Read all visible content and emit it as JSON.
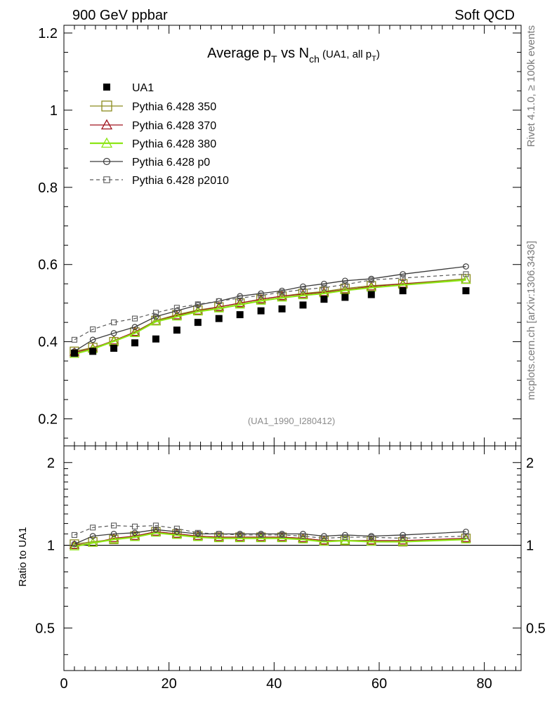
{
  "header": {
    "left": "900 GeV ppbar",
    "right": "Soft QCD"
  },
  "title": {
    "main": "Average p",
    "sub1": "T",
    "mid": " vs N",
    "sub2": "ch",
    "paren": " (UA1, all p",
    "sub3": "T",
    "close": ")"
  },
  "side_labels": {
    "rivet": "Rivet 4.1.0, ≥ 100k events",
    "mcplots": "mcplots.cern.ch [arXiv:1306.3436]"
  },
  "analysis_id": "(UA1_1990_I280412)",
  "ratio_ylabel": "Ratio to UA1",
  "colors": {
    "data": "#000000",
    "p350": "#8c8c1e",
    "p370": "#a0141e",
    "p380": "#8ce614",
    "p0": "#3c3c3c",
    "p2010": "#5a5a5a"
  },
  "chart_data": {
    "type": "line",
    "xlim": [
      0,
      87
    ],
    "ylim_main": [
      0.13,
      1.22
    ],
    "ylim_ratio": [
      0.35,
      2.3
    ],
    "x_ticks": [
      "0",
      "20",
      "40",
      "60",
      "80"
    ],
    "y_ticks_main": [
      "0.2",
      "0.4",
      "0.6",
      "0.8",
      "1",
      "1.2"
    ],
    "y_ticks_ratio": [
      "0.5",
      "1",
      "2"
    ],
    "x": [
      2,
      5.5,
      9.5,
      13.5,
      17.5,
      21.5,
      25.5,
      29.5,
      33.5,
      37.5,
      41.5,
      45.5,
      49.5,
      53.5,
      58.5,
      64.5,
      76.5
    ],
    "series": [
      {
        "name": "UA1",
        "style": "data",
        "values": [
          0.37,
          0.375,
          0.383,
          0.397,
          0.407,
          0.43,
          0.45,
          0.46,
          0.47,
          0.48,
          0.485,
          0.495,
          0.51,
          0.515,
          0.522,
          0.532,
          0.532
        ]
      },
      {
        "name": "Pythia 6.428 350",
        "style": "p350",
        "values": [
          0.375,
          0.385,
          0.4,
          0.425,
          0.455,
          0.47,
          0.482,
          0.49,
          0.5,
          0.51,
          0.518,
          0.525,
          0.53,
          0.538,
          0.545,
          0.55,
          0.563
        ]
      },
      {
        "name": "Pythia 6.428 370",
        "style": "p370",
        "values": [
          0.372,
          0.383,
          0.403,
          0.425,
          0.453,
          0.468,
          0.48,
          0.49,
          0.5,
          0.51,
          0.518,
          0.523,
          0.528,
          0.535,
          0.543,
          0.55,
          0.56
        ]
      },
      {
        "name": "Pythia 6.428 380",
        "style": "p380",
        "values": [
          0.368,
          0.381,
          0.401,
          0.422,
          0.452,
          0.465,
          0.478,
          0.486,
          0.496,
          0.506,
          0.514,
          0.52,
          0.525,
          0.533,
          0.54,
          0.547,
          0.56
        ]
      },
      {
        "name": "Pythia 6.428 p0",
        "style": "p0",
        "values": [
          0.375,
          0.405,
          0.422,
          0.438,
          0.465,
          0.48,
          0.495,
          0.505,
          0.518,
          0.525,
          0.532,
          0.543,
          0.55,
          0.558,
          0.563,
          0.575,
          0.595
        ]
      },
      {
        "name": "Pythia 6.428 p2010",
        "style": "p2010",
        "values": [
          0.405,
          0.432,
          0.45,
          0.46,
          0.475,
          0.488,
          0.497,
          0.505,
          0.513,
          0.52,
          0.528,
          0.535,
          0.54,
          0.548,
          0.56,
          0.565,
          0.575
        ]
      }
    ],
    "ratio_series": [
      {
        "name": "Pythia 6.428 350",
        "style": "p350",
        "values": [
          1.01,
          1.03,
          1.05,
          1.08,
          1.12,
          1.1,
          1.08,
          1.07,
          1.07,
          1.07,
          1.07,
          1.06,
          1.04,
          1.04,
          1.04,
          1.03,
          1.06
        ]
      },
      {
        "name": "Pythia 6.428 370",
        "style": "p370",
        "values": [
          1.0,
          1.02,
          1.06,
          1.08,
          1.12,
          1.1,
          1.08,
          1.07,
          1.07,
          1.07,
          1.07,
          1.06,
          1.04,
          1.04,
          1.04,
          1.04,
          1.06
        ]
      },
      {
        "name": "Pythia 6.428 380",
        "style": "p380",
        "values": [
          0.99,
          1.02,
          1.05,
          1.07,
          1.11,
          1.09,
          1.07,
          1.06,
          1.06,
          1.06,
          1.06,
          1.05,
          1.03,
          1.04,
          1.03,
          1.03,
          1.05
        ]
      },
      {
        "name": "Pythia 6.428 p0",
        "style": "p0",
        "values": [
          1.01,
          1.08,
          1.1,
          1.11,
          1.14,
          1.12,
          1.1,
          1.1,
          1.1,
          1.1,
          1.1,
          1.1,
          1.08,
          1.09,
          1.08,
          1.09,
          1.12
        ]
      },
      {
        "name": "Pythia 6.428 p2010",
        "style": "p2010",
        "values": [
          1.09,
          1.16,
          1.18,
          1.17,
          1.18,
          1.15,
          1.11,
          1.1,
          1.09,
          1.09,
          1.09,
          1.08,
          1.06,
          1.07,
          1.07,
          1.06,
          1.08
        ]
      }
    ]
  }
}
